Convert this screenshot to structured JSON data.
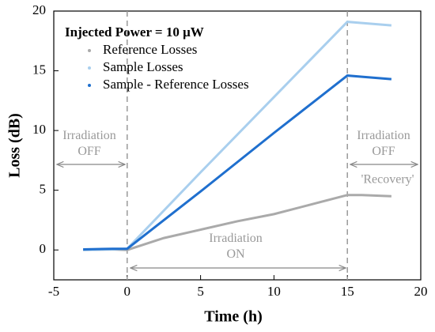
{
  "chart_data": {
    "type": "line",
    "xlabel": "Time (h)",
    "ylabel": "Loss (dB)",
    "legend_title": "Injected Power = 10 μW",
    "legend": "upper left",
    "xlim": [
      -5,
      20
    ],
    "xticks": [
      -5,
      0,
      5,
      10,
      15,
      20
    ],
    "ylim": [
      -2.5,
      20
    ],
    "yticks": [
      0,
      5,
      10,
      15,
      20
    ],
    "vlines": [
      0,
      15
    ],
    "annotations": [
      "Irradiation\nOFF",
      "Irradiation\nON",
      "Irradiation\nOFF",
      "'Recovery'"
    ],
    "series": [
      {
        "name": "Reference Losses",
        "color": "#aaaaaa",
        "x": [
          -3,
          -1,
          0,
          2.5,
          5,
          7.5,
          10,
          12.5,
          15,
          16,
          18
        ],
        "values": [
          0,
          0.05,
          0,
          1.0,
          1.7,
          2.4,
          3.0,
          3.8,
          4.6,
          4.6,
          4.5
        ]
      },
      {
        "name": "Sample Losses",
        "color": "#a9cfee",
        "x": [
          -3,
          -1,
          0,
          5,
          10,
          15,
          16,
          18
        ],
        "values": [
          0,
          0.05,
          0.1,
          6.5,
          12.8,
          19.1,
          19.0,
          18.8
        ]
      },
      {
        "name": "Sample - Reference Losses",
        "color": "#1f6fce",
        "x": [
          -3,
          -1,
          0,
          5,
          10,
          15,
          16,
          18
        ],
        "values": [
          0.05,
          0.1,
          0.1,
          4.9,
          9.8,
          14.6,
          14.5,
          14.3
        ]
      }
    ]
  }
}
